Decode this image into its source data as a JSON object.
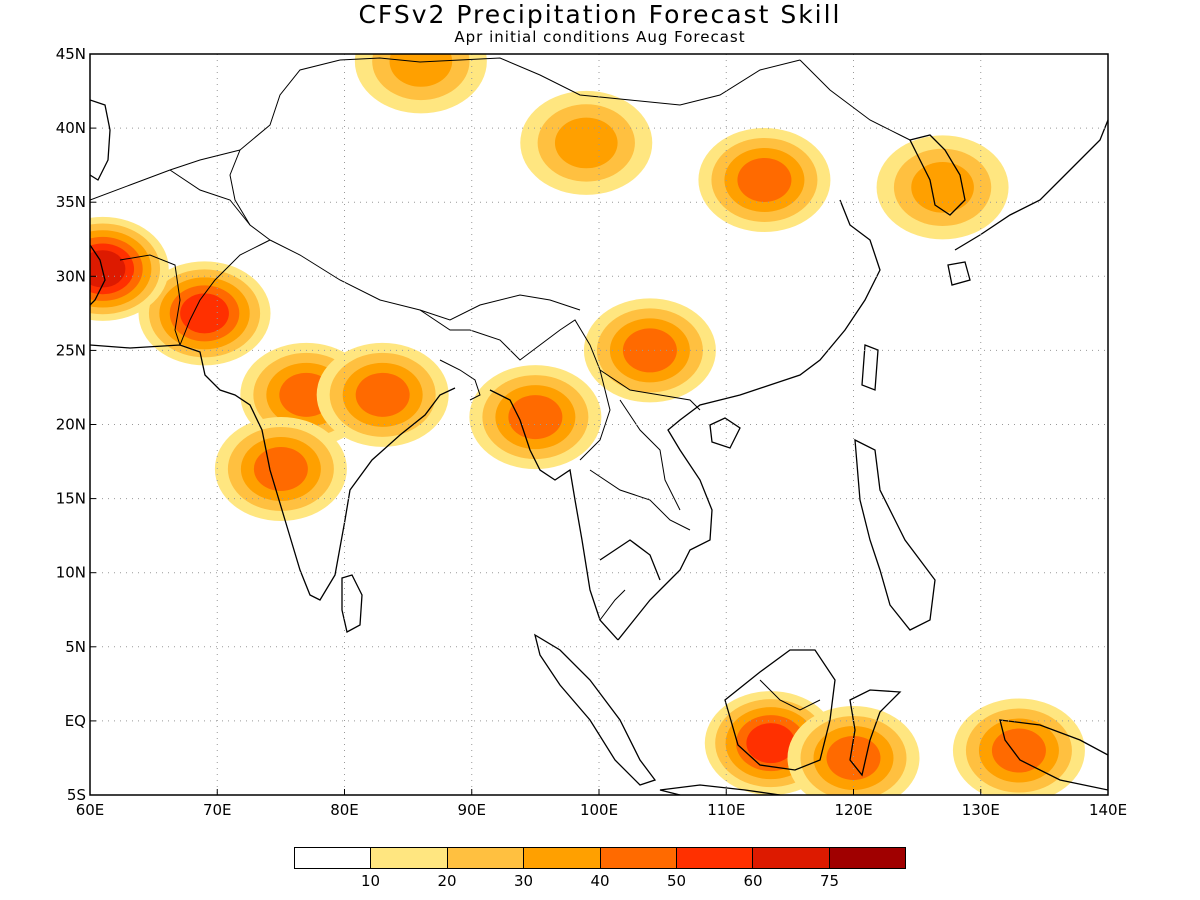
{
  "title": "CFSv2 Precipitation Forecast Skill",
  "subtitle": "Apr initial conditions   Aug Forecast",
  "axes": {
    "x_ticks": [
      "60E",
      "70E",
      "80E",
      "90E",
      "100E",
      "110E",
      "120E",
      "130E",
      "140E"
    ],
    "y_ticks": [
      "45N",
      "40N",
      "35N",
      "30N",
      "25N",
      "20N",
      "15N",
      "10N",
      "5N",
      "EQ",
      "5S"
    ],
    "lon_range": [
      60,
      140
    ],
    "lat_range": [
      -5,
      45
    ],
    "grid": true
  },
  "colorbar": {
    "colors": [
      "#ffffff",
      "#ffe680",
      "#ffc040",
      "#ffa000",
      "#ff6a00",
      "#ff3000",
      "#dd1a00",
      "#a00000"
    ],
    "labels": [
      "10",
      "20",
      "30",
      "40",
      "50",
      "60",
      "75"
    ]
  },
  "chart_data": {
    "type": "heatmap",
    "title": "CFSv2 Precipitation Forecast Skill",
    "subtitle": "Apr initial conditions   Aug Forecast",
    "xlabel": "",
    "ylabel": "",
    "xlim": [
      60,
      140
    ],
    "ylim": [
      -5,
      45
    ],
    "levels": [
      10,
      20,
      30,
      40,
      50,
      60,
      75
    ],
    "regions": [
      {
        "lon": 77,
        "lat": 22,
        "value": 45
      },
      {
        "lon": 75,
        "lat": 17,
        "value": 40
      },
      {
        "lon": 83,
        "lat": 22,
        "value": 40
      },
      {
        "lon": 69,
        "lat": 27.5,
        "value": 55
      },
      {
        "lon": 61,
        "lat": 30.5,
        "value": 60
      },
      {
        "lon": 95,
        "lat": 20.5,
        "value": 45
      },
      {
        "lon": 104,
        "lat": 25,
        "value": 45
      },
      {
        "lon": 113.5,
        "lat": -1.5,
        "value": 55
      },
      {
        "lon": 113,
        "lat": 36.5,
        "value": 40
      },
      {
        "lon": 99,
        "lat": 39,
        "value": 35
      },
      {
        "lon": 86,
        "lat": 44.5,
        "value": 35
      },
      {
        "lon": 127,
        "lat": 36,
        "value": 30
      },
      {
        "lon": 133,
        "lat": -2,
        "value": 45
      },
      {
        "lon": 120,
        "lat": -2.5,
        "value": 45
      }
    ]
  }
}
